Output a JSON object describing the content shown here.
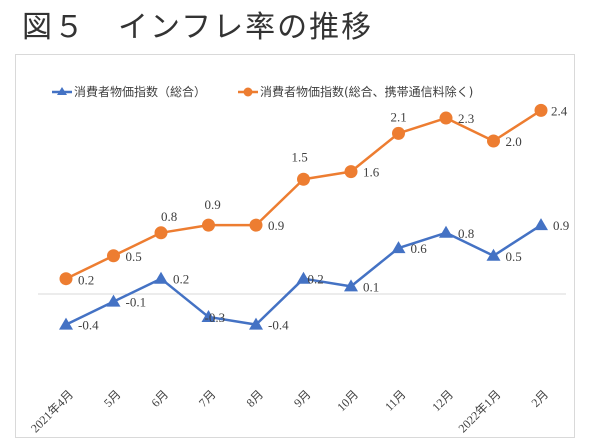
{
  "figure_title": "図５　インフレ率の推移",
  "chart_data": {
    "type": "line",
    "title": "図５　インフレ率の推移",
    "xlabel": "",
    "ylabel": "",
    "categories": [
      "2021年4月",
      "5月",
      "6月",
      "7月",
      "8月",
      "9月",
      "10月",
      "11月",
      "12月",
      "2022年1月",
      "2月"
    ],
    "series": [
      {
        "name": "消費者物価指数（総合）",
        "color": "#4472C4",
        "marker": "triangle",
        "values": [
          -0.4,
          -0.1,
          0.2,
          -0.3,
          -0.4,
          0.2,
          0.1,
          0.6,
          0.8,
          0.5,
          0.9
        ],
        "labels": [
          "-0.4",
          "-0.1",
          "0.2",
          "-0.3",
          "-0.4",
          "0.2",
          "0.1",
          "0.6",
          "0.8",
          "0.5",
          "0.9"
        ]
      },
      {
        "name": "消費者物価指数(総合、携帯通信料除く)",
        "color": "#ED7D31",
        "marker": "circle",
        "values": [
          0.2,
          0.5,
          0.8,
          0.9,
          0.9,
          1.5,
          1.6,
          2.1,
          2.3,
          2.0,
          2.4
        ],
        "labels": [
          "0.2",
          "0.5",
          "0.8",
          "0.9",
          "0.9",
          "1.5",
          "1.6",
          "2.1",
          "2.3",
          "2.0",
          "2.4"
        ]
      }
    ],
    "ylim": [
      -0.6,
      2.6
    ],
    "zero_line": true,
    "grid": false,
    "legend_position": "top"
  }
}
